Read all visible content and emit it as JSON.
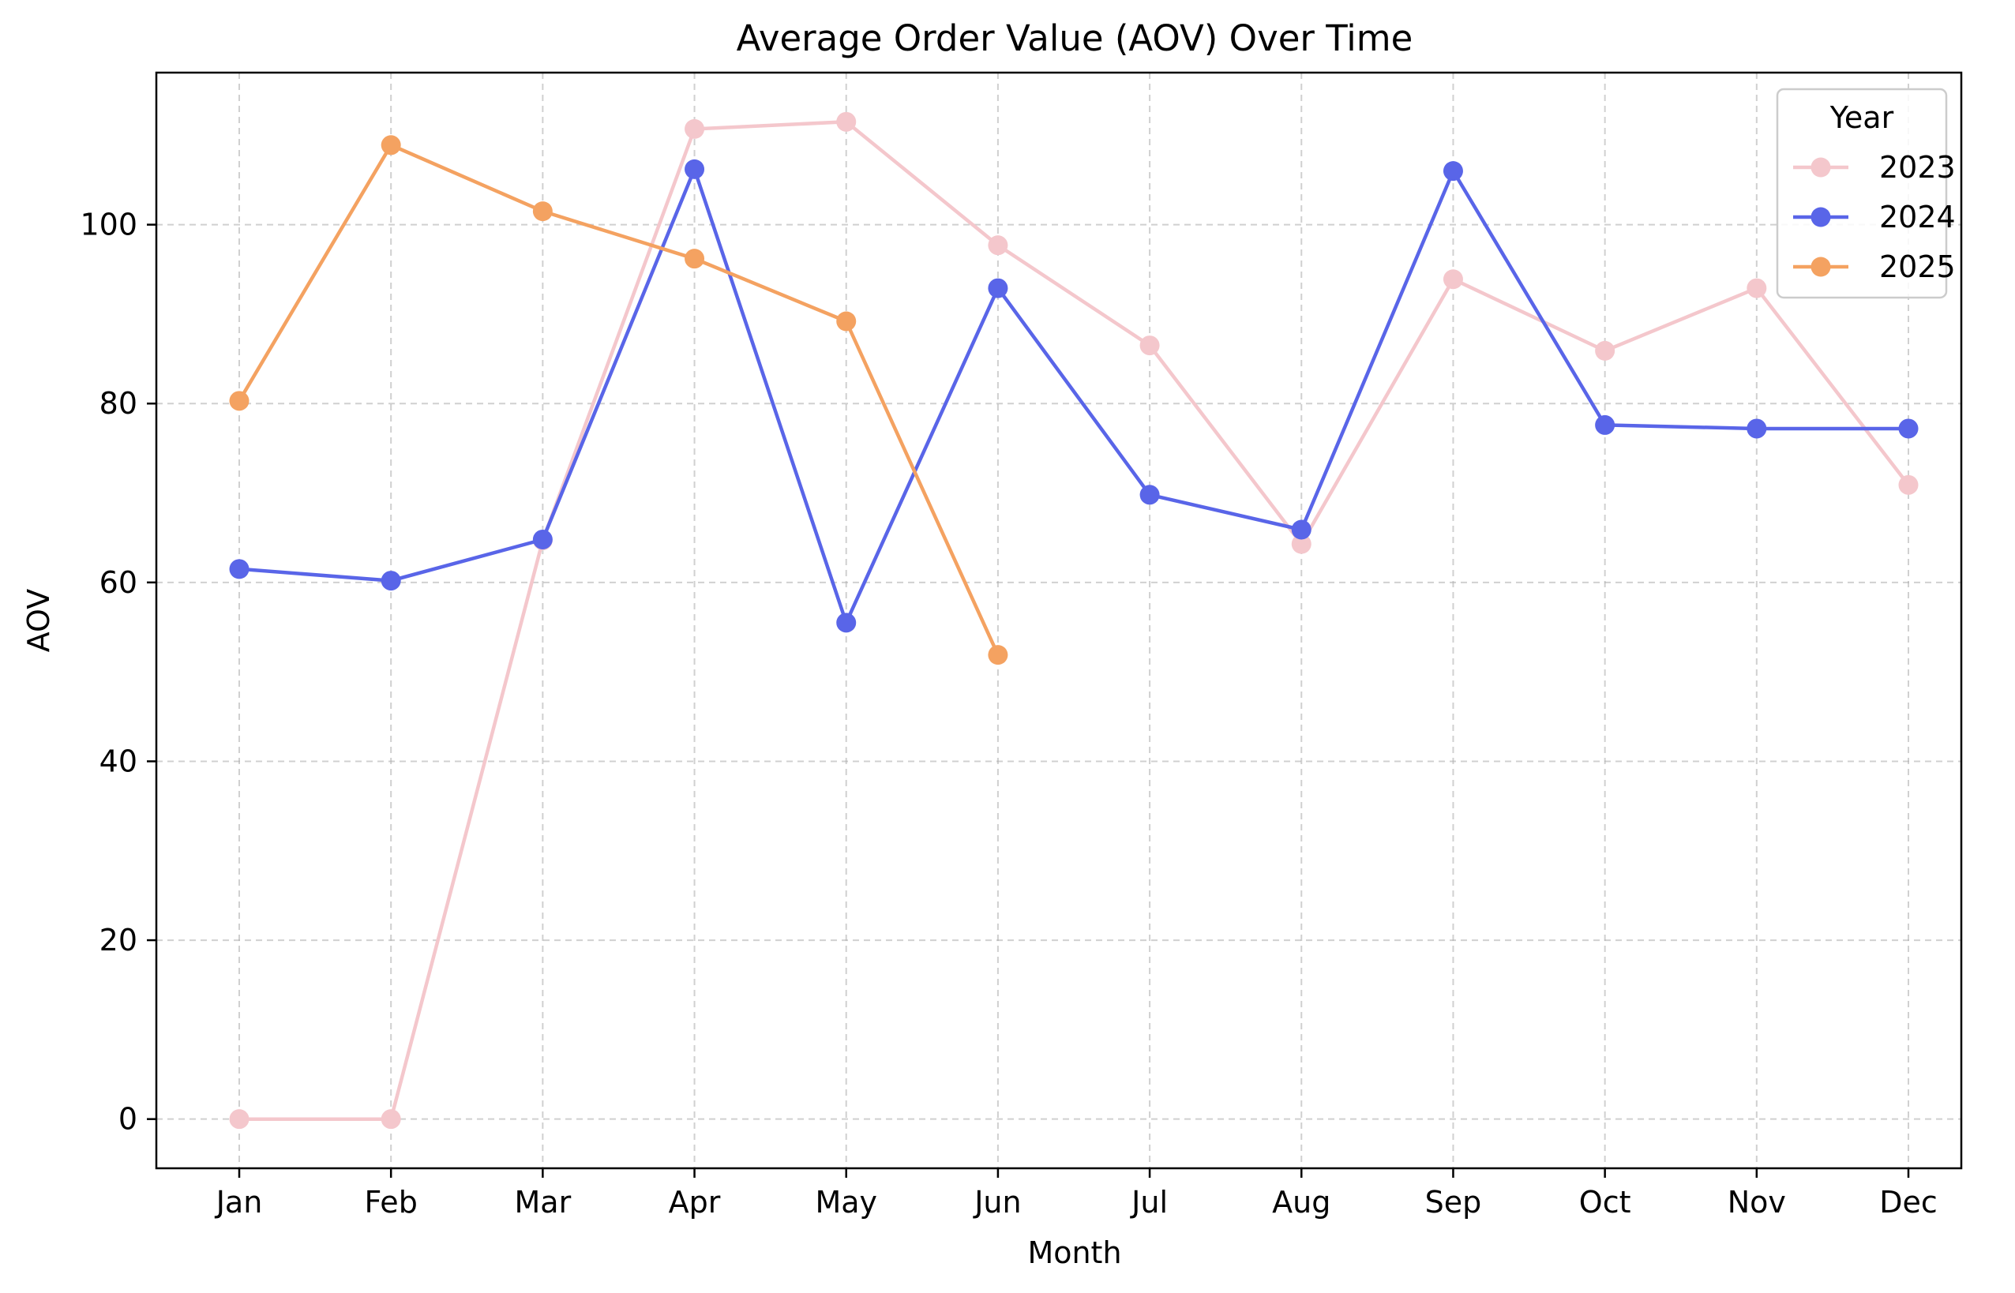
{
  "chart_data": {
    "type": "line",
    "title": "Average Order Value (AOV) Over Time",
    "xlabel": "Month",
    "ylabel": "AOV",
    "categories": [
      "Jan",
      "Feb",
      "Mar",
      "Apr",
      "May",
      "Jun",
      "Jul",
      "Aug",
      "Sep",
      "Oct",
      "Nov",
      "Dec"
    ],
    "ylim": [
      -5.5,
      117
    ],
    "yticks": [
      0,
      20,
      40,
      60,
      80,
      100
    ],
    "grid": true,
    "legend": {
      "title": "Year",
      "placement": "top-right"
    },
    "series": [
      {
        "name": "2023",
        "color": "#f4c7cc",
        "values": [
          0,
          0,
          64.7,
          110.7,
          111.5,
          97.7,
          86.5,
          64.3,
          93.9,
          85.9,
          92.9,
          70.9
        ]
      },
      {
        "name": "2024",
        "color": "#5965e8",
        "values": [
          61.5,
          60.2,
          64.8,
          106.2,
          55.5,
          92.9,
          69.8,
          65.9,
          106.0,
          77.6,
          77.2,
          77.2
        ]
      },
      {
        "name": "2025",
        "color": "#f4a261",
        "values": [
          80.3,
          108.9,
          101.5,
          96.2,
          89.2,
          51.9,
          null,
          null,
          null,
          null,
          null,
          null
        ]
      }
    ]
  }
}
